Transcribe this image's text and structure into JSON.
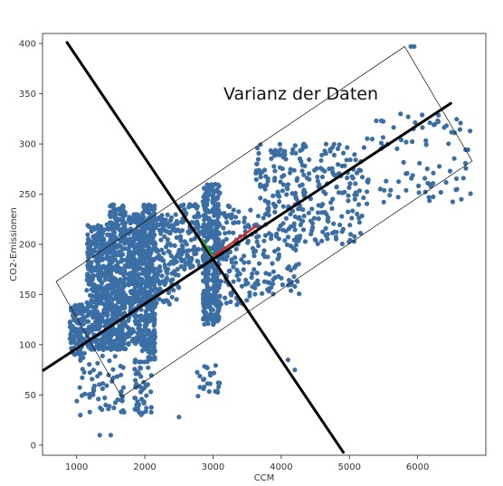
{
  "chart_data": {
    "type": "scatter",
    "title": "",
    "xlabel": "CCM",
    "ylabel": "CO2-Emissionen",
    "xlim": [
      500,
      7000
    ],
    "ylim": [
      -10,
      410
    ],
    "xticks": [
      1000,
      2000,
      3000,
      4000,
      5000,
      6000
    ],
    "yticks": [
      0,
      50,
      100,
      150,
      200,
      250,
      300,
      350,
      400
    ],
    "grid": false,
    "point_color": "#3a6ea5",
    "annotation": "Varianz der Daten",
    "clusters": [
      {
        "x": [
          900,
          1120
        ],
        "y": [
          90,
          140
        ],
        "n": 140
      },
      {
        "x": [
          1150,
          1480
        ],
        "y": [
          95,
          220
        ],
        "n": 380
      },
      {
        "x": [
          1480,
          1720
        ],
        "y": [
          95,
          240
        ],
        "n": 380
      },
      {
        "x": [
          1750,
          1950
        ],
        "y": [
          100,
          230
        ],
        "n": 260
      },
      {
        "x": [
          1950,
          2150
        ],
        "y": [
          85,
          240
        ],
        "n": 360
      },
      {
        "x": [
          2150,
          2500
        ],
        "y": [
          140,
          230
        ],
        "n": 140
      },
      {
        "x": [
          2500,
          2800
        ],
        "y": [
          175,
          240
        ],
        "n": 90
      },
      {
        "x": [
          2850,
          3100
        ],
        "y": [
          120,
          260
        ],
        "n": 380
      },
      {
        "x": [
          3100,
          3600
        ],
        "y": [
          140,
          240
        ],
        "n": 100
      },
      {
        "x": [
          3600,
          4300
        ],
        "y": [
          150,
          300
        ],
        "n": 210
      },
      {
        "x": [
          4300,
          5200
        ],
        "y": [
          200,
          300
        ],
        "n": 150
      },
      {
        "x": [
          5200,
          6800
        ],
        "y": [
          240,
          330
        ],
        "n": 90
      },
      {
        "x": [
          1000,
          1700
        ],
        "y": [
          30,
          90
        ],
        "n": 60
      },
      {
        "x": [
          1850,
          2100
        ],
        "y": [
          30,
          85
        ],
        "n": 50
      },
      {
        "x": [
          2750,
          3100
        ],
        "y": [
          45,
          80
        ],
        "n": 25
      }
    ],
    "outliers": [
      {
        "x": 1340,
        "y": 10
      },
      {
        "x": 1500,
        "y": 10
      },
      {
        "x": 2500,
        "y": 28
      },
      {
        "x": 5900,
        "y": 397
      },
      {
        "x": 5950,
        "y": 397
      },
      {
        "x": 4200,
        "y": 75
      },
      {
        "x": 4100,
        "y": 85
      },
      {
        "x": 3600,
        "y": 175
      },
      {
        "x": 3350,
        "y": 140
      }
    ],
    "principal_axes": [
      {
        "name": "",
        "from": [
          500,
          74
        ],
        "to": [
          6500,
          341
        ],
        "color": "#000000"
      },
      {
        "name": "",
        "from": [
          850,
          402
        ],
        "to": [
          4920,
          -8
        ],
        "color": "#000000"
      }
    ],
    "center": [
      3000,
      188
    ],
    "eigenvectors": [
      {
        "to": [
          3650,
          219
        ],
        "color": "#d62728"
      },
      {
        "to": [
          2830,
          206
        ],
        "color": "#2ca02c"
      }
    ],
    "bounding_box": [
      [
        700,
        163
      ],
      [
        5810,
        397
      ],
      [
        6800,
        283
      ],
      [
        1660,
        48
      ]
    ]
  }
}
